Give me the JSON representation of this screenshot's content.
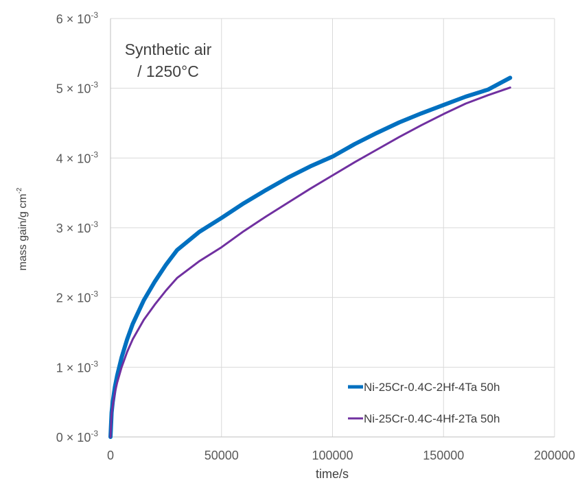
{
  "chart_data": {
    "type": "line",
    "title": "",
    "xlabel": "time/s",
    "ylabel": "mass gain/g cm",
    "ylabel_superscript": "-2",
    "xlim": [
      0,
      200000
    ],
    "ylim": [
      0,
      0.006
    ],
    "grid": true,
    "legend_position": "bottom-right",
    "x_ticks": [
      {
        "value": 0,
        "label": "0"
      },
      {
        "value": 50000,
        "label": "50000"
      },
      {
        "value": 100000,
        "label": "100000"
      },
      {
        "value": 150000,
        "label": "150000"
      },
      {
        "value": 200000,
        "label": "200000"
      }
    ],
    "y_ticks": [
      {
        "value": 0,
        "mantissa": "0",
        "exponent": "-3"
      },
      {
        "value": 0.001,
        "mantissa": "1",
        "exponent": "-3"
      },
      {
        "value": 0.002,
        "mantissa": "2",
        "exponent": "-3"
      },
      {
        "value": 0.003,
        "mantissa": "3",
        "exponent": "-3"
      },
      {
        "value": 0.004,
        "mantissa": "4",
        "exponent": "-3"
      },
      {
        "value": 0.005,
        "mantissa": "5",
        "exponent": "-3"
      },
      {
        "value": 0.006,
        "mantissa": "6",
        "exponent": "-3"
      }
    ],
    "annotation": {
      "line1": "Synthetic air",
      "line2": "/ 1250°C"
    },
    "series": [
      {
        "name": "Ni-25Cr-0.4C-2Hf-4Ta 50h",
        "color": "#0070c0",
        "x": [
          0,
          500,
          1000,
          2000,
          3000,
          5000,
          7500,
          10000,
          15000,
          20000,
          25000,
          30000,
          40000,
          50000,
          60000,
          70000,
          80000,
          90000,
          100000,
          110000,
          120000,
          130000,
          140000,
          150000,
          160000,
          170000,
          180000
        ],
        "y": [
          0,
          0.00035,
          0.0005,
          0.00072,
          0.00088,
          0.00114,
          0.0014,
          0.00162,
          0.00196,
          0.00223,
          0.00247,
          0.00268,
          0.00294,
          0.00314,
          0.00335,
          0.00354,
          0.00372,
          0.00388,
          0.00402,
          0.0042,
          0.00436,
          0.00451,
          0.00464,
          0.00476,
          0.00488,
          0.00498,
          0.00515
        ]
      },
      {
        "name": "Ni-25Cr-0.4C-4Hf-2Ta 50h",
        "color": "#7030a0",
        "x": [
          0,
          500,
          1000,
          2000,
          3000,
          5000,
          7500,
          10000,
          15000,
          20000,
          25000,
          30000,
          40000,
          50000,
          60000,
          70000,
          80000,
          90000,
          100000,
          110000,
          120000,
          130000,
          140000,
          150000,
          160000,
          170000,
          180000
        ],
        "y": [
          0,
          0.00033,
          0.00045,
          0.00064,
          0.00078,
          0.001,
          0.00122,
          0.0014,
          0.00168,
          0.0019,
          0.0021,
          0.00228,
          0.00252,
          0.00272,
          0.00295,
          0.00316,
          0.00336,
          0.00356,
          0.00375,
          0.00394,
          0.00412,
          0.0043,
          0.00447,
          0.00463,
          0.00478,
          0.0049,
          0.00501
        ]
      }
    ]
  }
}
